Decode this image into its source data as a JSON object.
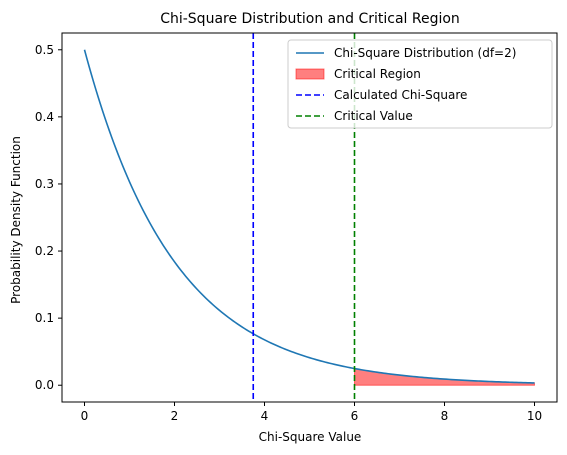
{
  "chart_data": {
    "type": "line",
    "title": "Chi-Square Distribution and Critical Region",
    "xlabel": "Chi-Square Value",
    "ylabel": "Probability Density Function",
    "xlim": [
      -0.5,
      10.5
    ],
    "ylim": [
      -0.025,
      0.525
    ],
    "xticks": [
      0,
      2,
      4,
      6,
      8,
      10
    ],
    "yticks": [
      0.0,
      0.1,
      0.2,
      0.3,
      0.4,
      0.5
    ],
    "xtick_labels": [
      "0",
      "2",
      "4",
      "6",
      "8",
      "10"
    ],
    "ytick_labels": [
      "0.0",
      "0.1",
      "0.2",
      "0.3",
      "0.4",
      "0.5"
    ],
    "grid": false,
    "legend_position": "top-right",
    "series": [
      {
        "name": "Chi-Square Distribution (df=2)",
        "kind": "line",
        "color": "#1f77b4",
        "df": 2,
        "x_range": [
          0,
          10
        ],
        "x": [
          0,
          0.5,
          1,
          1.5,
          2,
          2.5,
          3,
          3.5,
          4,
          4.5,
          5,
          5.5,
          6,
          6.5,
          7,
          7.5,
          8,
          8.5,
          9,
          9.5,
          10
        ],
        "y": [
          0.5,
          0.389,
          0.303,
          0.236,
          0.184,
          0.143,
          0.112,
          0.087,
          0.068,
          0.053,
          0.041,
          0.032,
          0.025,
          0.019,
          0.015,
          0.012,
          0.009,
          0.007,
          0.006,
          0.004,
          0.003
        ]
      },
      {
        "name": "Critical Region",
        "kind": "area",
        "color": "#ff0000",
        "x_range": [
          6,
          10
        ]
      },
      {
        "name": "Calculated Chi-Square",
        "kind": "vline",
        "color": "#0000ff",
        "x": 3.75
      },
      {
        "name": "Critical Value",
        "kind": "vline",
        "color": "#008000",
        "x": 6
      }
    ]
  }
}
